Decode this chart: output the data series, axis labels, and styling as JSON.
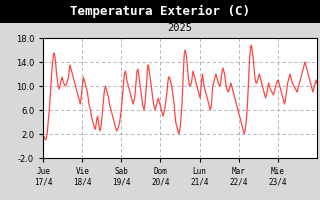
{
  "title": "Temperatura Exterior (C)",
  "subtitle": "2025",
  "title_bar_color": "#000000",
  "title_color": "#ffffff",
  "figure_bg_color": "#d8d8d8",
  "plot_bg_color": "#ffffff",
  "line_color": "#ff4444",
  "subtitle_color": "#000000",
  "grid_color": "#aaaaaa",
  "tick_color": "#000000",
  "ylim": [
    -2.0,
    18.0
  ],
  "yticks": [
    -2.0,
    2.0,
    6.0,
    10.0,
    14.0,
    18.0
  ],
  "x_labels": [
    "Jue\n17/4",
    "Vie\n18/4",
    "Sab\n19/4",
    "Dom\n20/4",
    "Lun\n21/4",
    "Mar\n22/4",
    "Mie\n23/4"
  ],
  "x_positions": [
    0,
    24,
    48,
    72,
    96,
    120,
    144
  ],
  "temperatures": [
    1.8,
    1.5,
    1.2,
    1.0,
    1.3,
    2.0,
    3.5,
    5.0,
    6.5,
    8.5,
    10.5,
    12.5,
    14.0,
    15.2,
    15.5,
    14.8,
    13.5,
    12.0,
    11.0,
    10.0,
    9.5,
    9.8,
    10.5,
    11.0,
    11.5,
    11.0,
    10.5,
    10.2,
    10.0,
    10.2,
    10.5,
    11.0,
    11.5,
    12.5,
    13.5,
    13.0,
    12.5,
    12.0,
    11.5,
    11.0,
    10.5,
    10.0,
    9.5,
    9.0,
    8.5,
    8.0,
    7.5,
    7.0,
    8.0,
    9.0,
    10.5,
    11.5,
    11.0,
    10.5,
    10.0,
    9.5,
    9.0,
    8.0,
    7.0,
    6.5,
    6.0,
    5.0,
    4.5,
    4.0,
    3.5,
    3.0,
    2.8,
    3.5,
    4.5,
    5.0,
    4.0,
    3.0,
    2.5,
    3.0,
    4.0,
    5.5,
    7.0,
    8.5,
    9.5,
    10.0,
    9.5,
    9.0,
    8.5,
    8.0,
    7.0,
    6.5,
    6.0,
    5.5,
    5.0,
    4.5,
    4.0,
    3.5,
    3.0,
    2.5,
    2.8,
    3.0,
    3.5,
    4.0,
    5.0,
    6.0,
    7.5,
    9.0,
    10.5,
    12.0,
    12.5,
    12.0,
    11.0,
    10.5,
    10.0,
    9.5,
    9.0,
    8.5,
    8.0,
    7.5,
    7.0,
    7.5,
    8.0,
    9.5,
    11.0,
    12.5,
    12.8,
    12.0,
    11.0,
    10.0,
    9.0,
    8.0,
    7.0,
    6.5,
    6.0,
    7.0,
    8.5,
    10.0,
    12.5,
    13.5,
    13.0,
    12.0,
    11.0,
    10.0,
    9.0,
    8.0,
    7.0,
    6.5,
    6.0,
    6.5,
    7.0,
    7.5,
    8.0,
    7.5,
    7.0,
    6.5,
    6.0,
    5.5,
    5.0,
    5.5,
    6.0,
    7.0,
    8.0,
    9.0,
    10.5,
    11.5,
    11.5,
    11.0,
    10.5,
    10.0,
    9.0,
    8.0,
    7.0,
    5.5,
    4.0,
    3.5,
    3.0,
    2.5,
    2.0,
    2.5,
    3.5,
    5.0,
    7.0,
    10.0,
    13.0,
    15.5,
    16.0,
    15.5,
    14.5,
    13.0,
    11.5,
    10.5,
    10.0,
    10.2,
    10.5,
    11.5,
    12.5,
    12.0,
    11.5,
    11.0,
    10.5,
    10.0,
    9.5,
    9.0,
    8.5,
    8.0,
    9.5,
    11.0,
    12.0,
    11.0,
    10.0,
    9.5,
    9.0,
    8.5,
    8.0,
    7.5,
    7.0,
    6.5,
    6.0,
    6.5,
    8.0,
    10.0,
    10.5,
    11.0,
    11.5,
    12.0,
    11.5,
    11.0,
    10.5,
    10.2,
    10.0,
    10.5,
    11.5,
    12.5,
    13.0,
    12.5,
    12.0,
    11.0,
    10.0,
    9.5,
    9.2,
    9.0,
    9.5,
    10.0,
    10.5,
    10.0,
    9.5,
    9.0,
    8.5,
    8.0,
    7.5,
    7.0,
    6.5,
    6.0,
    5.5,
    5.0,
    4.5,
    4.0,
    3.5,
    3.0,
    2.5,
    2.0,
    2.5,
    3.5,
    5.0,
    7.0,
    9.5,
    12.5,
    15.0,
    16.5,
    16.8,
    16.0,
    15.0,
    13.5,
    12.0,
    11.0,
    10.5,
    10.5,
    11.0,
    11.5,
    12.0,
    11.5,
    11.0,
    10.5,
    10.0,
    9.5,
    9.0,
    8.5,
    8.0,
    8.5,
    9.0,
    10.0,
    10.5,
    10.0,
    9.5,
    9.2,
    9.0,
    8.8,
    8.5,
    9.0,
    9.5,
    10.0,
    10.5,
    10.8,
    11.0,
    10.5,
    10.0,
    9.5,
    9.0,
    8.5,
    8.0,
    7.5,
    7.0,
    7.5,
    8.5,
    9.5,
    10.5,
    11.0,
    11.5,
    12.0,
    11.5,
    11.0,
    10.5,
    10.2,
    10.0,
    9.8,
    9.5,
    9.2,
    9.0,
    9.5,
    10.0,
    10.5,
    11.0,
    11.5,
    12.0,
    12.5,
    13.0,
    13.5,
    14.0,
    13.5,
    13.0,
    12.5,
    12.0,
    11.5,
    11.0,
    10.5,
    10.0,
    9.5,
    9.0,
    9.5,
    10.0,
    10.5,
    11.0,
    10.5
  ]
}
